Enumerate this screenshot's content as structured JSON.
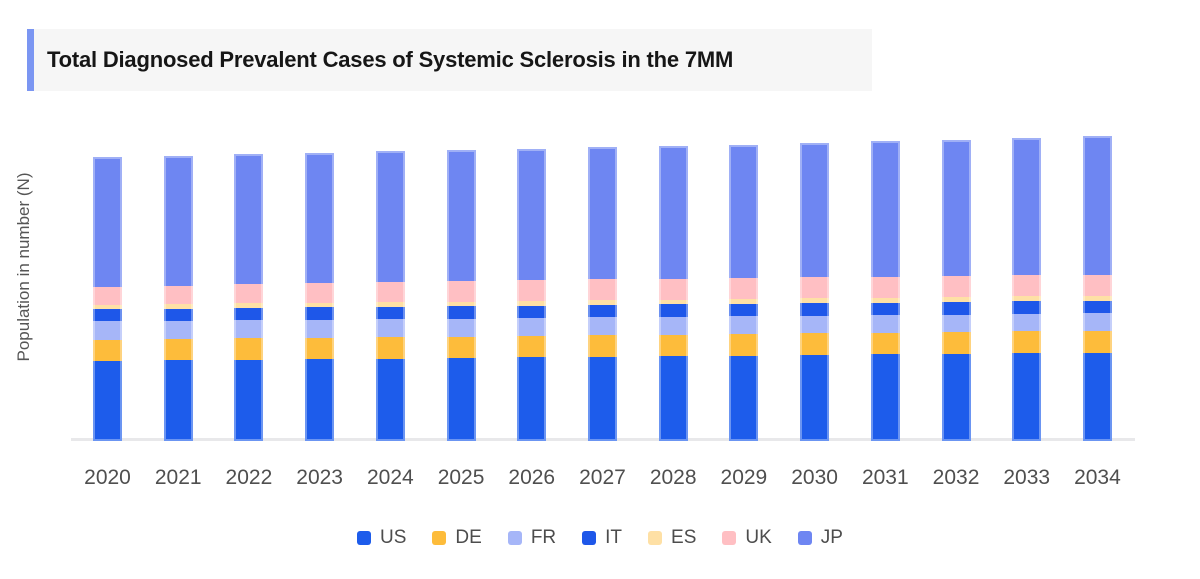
{
  "header": {
    "accent_color": "#7b96f2",
    "panel_background": "#f6f6f6"
  },
  "chart_data": {
    "type": "bar",
    "stacked": true,
    "title": "Total Diagnosed Prevalent Cases of Systemic Sclerosis in the 7MM",
    "ylabel": "Population in number (N)",
    "xlabel": "",
    "grid": false,
    "legend_position": "bottom",
    "value_units": "relative segment heights in screen px (chart displays no numeric y-axis ticks)",
    "x": [
      "2020",
      "2021",
      "2022",
      "2023",
      "2024",
      "2025",
      "2026",
      "2027",
      "2028",
      "2029",
      "2030",
      "2031",
      "2032",
      "2033",
      "2034"
    ],
    "stack_order_bottom_to_top": [
      "US",
      "DE",
      "FR",
      "IT",
      "ES",
      "UK",
      "JP"
    ],
    "series": [
      {
        "name": "US",
        "color": "#1d5ceb",
        "values": [
          80.0,
          80.6,
          81.2,
          81.8,
          82.4,
          83.0,
          83.6,
          84.3,
          84.9,
          85.5,
          86.1,
          86.7,
          87.3,
          87.9,
          88.5
        ]
      },
      {
        "name": "DE",
        "color": "#fdbc3b",
        "values": [
          21.3,
          21.3,
          21.4,
          21.4,
          21.4,
          21.5,
          21.5,
          21.6,
          21.6,
          21.6,
          21.7,
          21.7,
          21.7,
          21.8,
          21.8
        ]
      },
      {
        "name": "FR",
        "color": "#a6b6f8",
        "values": [
          18.3,
          18.2,
          18.2,
          18.1,
          18.0,
          17.9,
          17.9,
          17.8,
          17.7,
          17.7,
          17.6,
          17.5,
          17.5,
          17.4,
          17.3
        ]
      },
      {
        "name": "IT",
        "color": "#1e57e9",
        "values": [
          12.3,
          12.3,
          12.4,
          12.4,
          12.4,
          12.4,
          12.5,
          12.5,
          12.5,
          12.6,
          12.6,
          12.6,
          12.6,
          12.7,
          12.7
        ]
      },
      {
        "name": "ES",
        "color": "#fee0a5",
        "values": [
          4.4,
          4.4,
          4.5,
          4.5,
          4.6,
          4.6,
          4.7,
          4.7,
          4.7,
          4.8,
          4.8,
          4.9,
          4.9,
          5.0,
          5.0
        ]
      },
      {
        "name": "UK",
        "color": "#ffbfc3",
        "values": [
          18.0,
          18.5,
          19.0,
          19.5,
          20.0,
          20.4,
          20.7,
          21.0,
          21.0,
          21.0,
          21.0,
          21.0,
          21.0,
          21.0,
          21.0
        ]
      },
      {
        "name": "JP",
        "color": "#6e86f2",
        "values": [
          130.0,
          130.2,
          130.5,
          130.8,
          131.0,
          131.2,
          131.5,
          131.7,
          132.5,
          133.3,
          134.2,
          135.2,
          136.2,
          137.3,
          138.3
        ]
      }
    ]
  }
}
